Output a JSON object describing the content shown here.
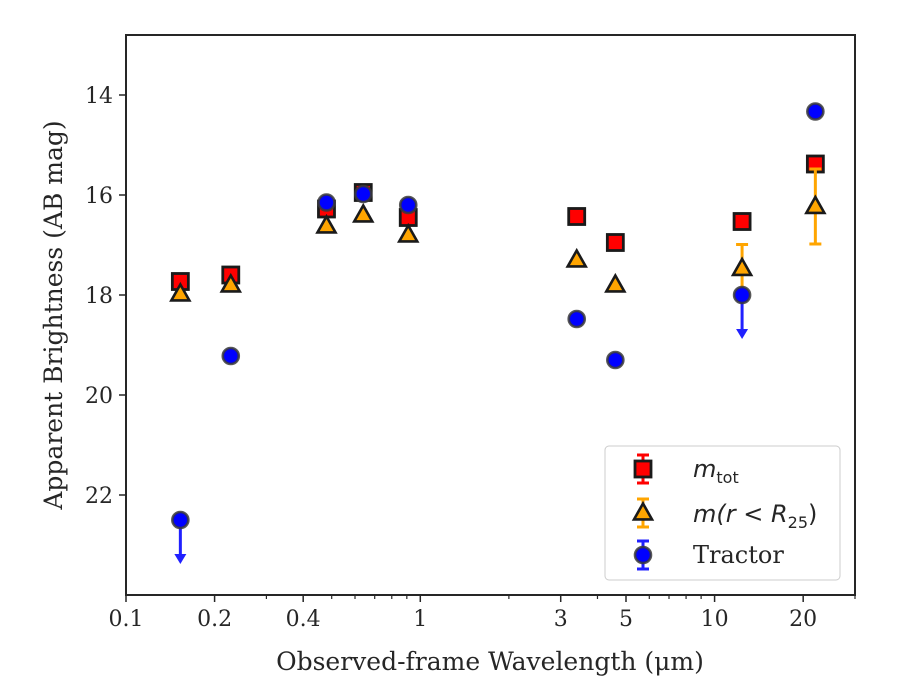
{
  "chart_data": {
    "type": "scatter",
    "xlabel": "Observed-frame Wavelength (μm)",
    "ylabel": "Apparent Brightness (AB mag)",
    "xscale": "log",
    "xlim": [
      0.1,
      30
    ],
    "ylim": [
      24,
      12.8
    ],
    "y_inverted": true,
    "x_major_ticks": [
      {
        "value": 0.1,
        "label": "0.1"
      },
      {
        "value": 0.2,
        "label": "0.2"
      },
      {
        "value": 0.4,
        "label": "0.4"
      },
      {
        "value": 1,
        "label": "1"
      },
      {
        "value": 3,
        "label": "3"
      },
      {
        "value": 5,
        "label": "5"
      },
      {
        "value": 10,
        "label": "10"
      },
      {
        "value": 20,
        "label": "20"
      }
    ],
    "x_minor_ticks": [
      0.3,
      0.5,
      0.6,
      0.7,
      0.8,
      0.9,
      2,
      4,
      6,
      7,
      8,
      9,
      30
    ],
    "y_ticks": [
      {
        "value": 14,
        "label": "14"
      },
      {
        "value": 16,
        "label": "16"
      },
      {
        "value": 18,
        "label": "18"
      },
      {
        "value": 20,
        "label": "20"
      },
      {
        "value": 22,
        "label": "22"
      }
    ],
    "legend_position": "lower-right",
    "series": [
      {
        "name": "m_tot",
        "marker": "square",
        "color": "#ff0000",
        "errcolor": "#ff0000",
        "points": [
          {
            "x": 0.153,
            "y": 17.73
          },
          {
            "x": 0.227,
            "y": 17.6
          },
          {
            "x": 0.48,
            "y": 16.28
          },
          {
            "x": 0.64,
            "y": 15.95
          },
          {
            "x": 0.91,
            "y": 16.45
          },
          {
            "x": 3.4,
            "y": 16.43
          },
          {
            "x": 4.6,
            "y": 16.95
          },
          {
            "x": 12.4,
            "y": 16.53
          },
          {
            "x": 22.0,
            "y": 15.38
          }
        ]
      },
      {
        "name": "m(r < R25)",
        "marker": "triangle",
        "color": "#ffa500",
        "errcolor": "#ffa500",
        "points": [
          {
            "x": 0.153,
            "y": 17.98
          },
          {
            "x": 0.227,
            "y": 17.8
          },
          {
            "x": 0.48,
            "y": 16.62
          },
          {
            "x": 0.64,
            "y": 16.4
          },
          {
            "x": 0.91,
            "y": 16.8
          },
          {
            "x": 3.4,
            "y": 17.3
          },
          {
            "x": 4.6,
            "y": 17.8
          },
          {
            "x": 12.4,
            "y": 17.47,
            "err": [
              0.48,
              0.48
            ]
          },
          {
            "x": 22.0,
            "y": 16.23,
            "err": [
              0.75,
              0.75
            ]
          }
        ]
      },
      {
        "name": "Tractor",
        "marker": "circle",
        "color": "#0000ff",
        "errcolor": "#2020ff",
        "points": [
          {
            "x": 0.153,
            "y": 22.5,
            "upper_limit": true
          },
          {
            "x": 0.227,
            "y": 19.22
          },
          {
            "x": 0.48,
            "y": 16.15
          },
          {
            "x": 0.64,
            "y": 15.98
          },
          {
            "x": 0.91,
            "y": 16.2
          },
          {
            "x": 3.4,
            "y": 18.48
          },
          {
            "x": 4.6,
            "y": 19.3
          },
          {
            "x": 12.4,
            "y": 18.0,
            "upper_limit": true
          },
          {
            "x": 22.0,
            "y": 14.33
          }
        ]
      }
    ]
  },
  "legend": {
    "items": [
      {
        "main": "m",
        "sub": "tot"
      },
      {
        "main": "m(r < R",
        "sub": "25",
        "tail": ")"
      },
      {
        "text": "Tractor"
      }
    ]
  }
}
